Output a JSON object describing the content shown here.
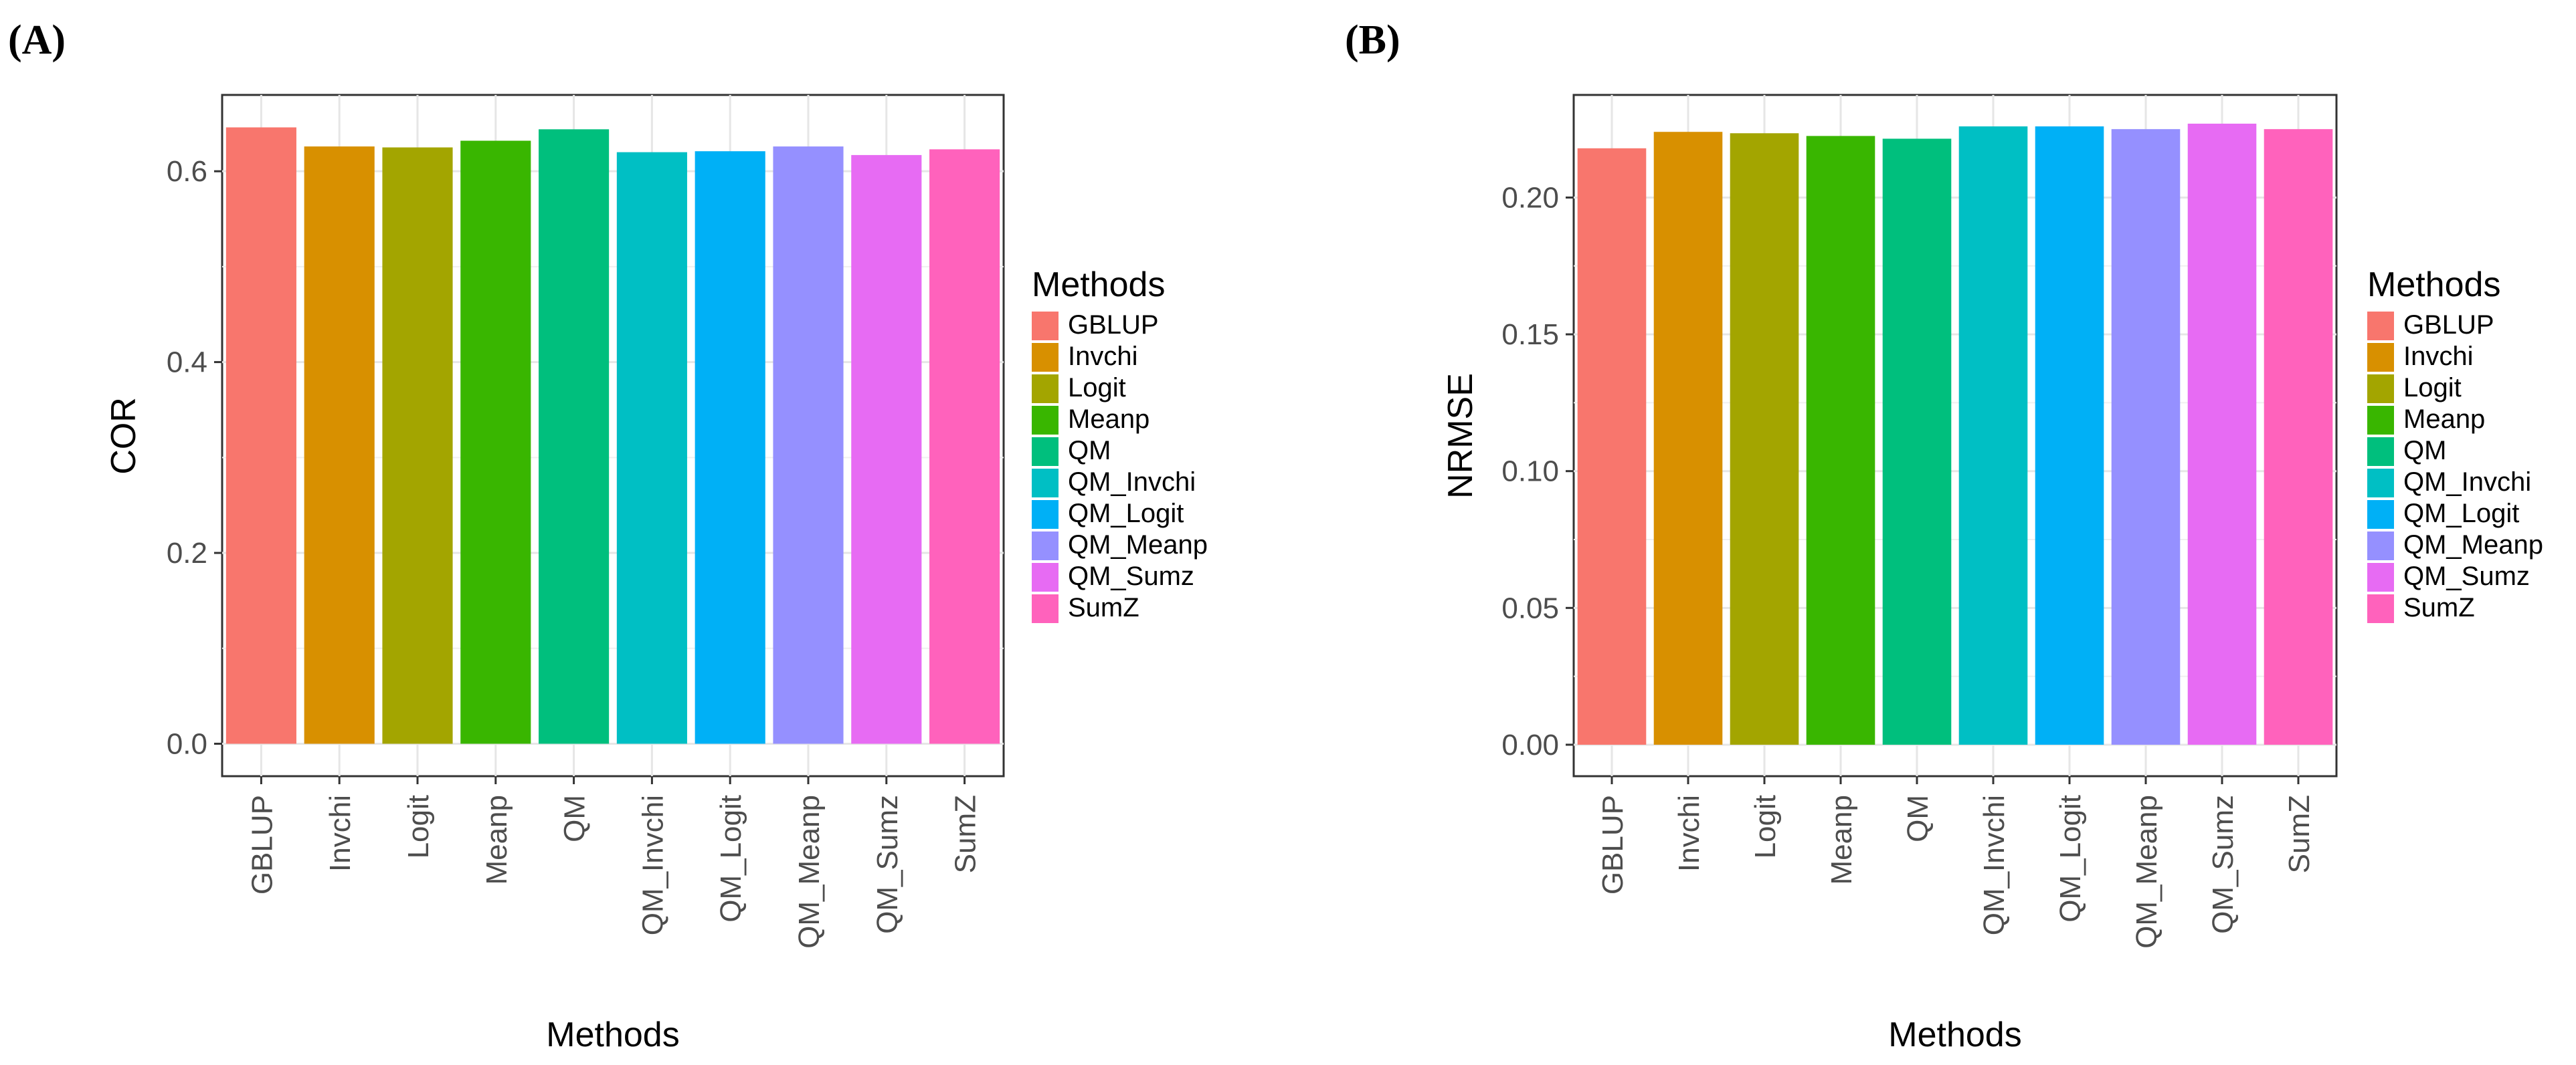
{
  "figure": {
    "panels": [
      "(A)",
      "(B)"
    ]
  },
  "colors": {
    "GBLUP": "#F8766D",
    "Invchi": "#D89000",
    "Logit": "#A3A500",
    "Meanp": "#39B600",
    "QM": "#00BF7D",
    "QM_Invchi": "#00BFC4",
    "QM_Logit": "#00B0F6",
    "QM_Meanp": "#9590FF",
    "QM_Sumz": "#E76BF3",
    "SumZ": "#FF62BC"
  },
  "chart_data": [
    {
      "type": "bar",
      "panel": "(A)",
      "title": "",
      "xlabel": "Methods",
      "ylabel": "COR",
      "categories": [
        "GBLUP",
        "Invchi",
        "Logit",
        "Meanp",
        "QM",
        "QM_Invchi",
        "QM_Logit",
        "QM_Meanp",
        "QM_Sumz",
        "SumZ"
      ],
      "values": [
        0.646,
        0.626,
        0.625,
        0.632,
        0.644,
        0.62,
        0.621,
        0.626,
        0.617,
        0.623
      ],
      "ylim": [
        -0.034,
        0.68
      ],
      "yticks": [
        0.0,
        0.2,
        0.4,
        0.6
      ],
      "ytick_labels": [
        "0.0",
        "0.2",
        "0.4",
        "0.6"
      ],
      "grid": true,
      "legend": {
        "title": "Methods",
        "placement": "right",
        "entries": [
          "GBLUP",
          "Invchi",
          "Logit",
          "Meanp",
          "QM",
          "QM_Invchi",
          "QM_Logit",
          "QM_Meanp",
          "QM_Sumz",
          "SumZ"
        ]
      }
    },
    {
      "type": "bar",
      "panel": "(B)",
      "title": "",
      "xlabel": "Methods",
      "ylabel": "NRMSE",
      "categories": [
        "GBLUP",
        "Invchi",
        "Logit",
        "Meanp",
        "QM",
        "QM_Invchi",
        "QM_Logit",
        "QM_Meanp",
        "QM_Sumz",
        "SumZ"
      ],
      "values": [
        0.218,
        0.224,
        0.2235,
        0.2225,
        0.2215,
        0.226,
        0.226,
        0.225,
        0.227,
        0.225
      ],
      "ylim": [
        -0.0115,
        0.2375
      ],
      "yticks": [
        0.0,
        0.05,
        0.1,
        0.15,
        0.2
      ],
      "ytick_labels": [
        "0.00",
        "0.05",
        "0.10",
        "0.15",
        "0.20"
      ],
      "grid": true,
      "legend": {
        "title": "Methods",
        "placement": "right",
        "entries": [
          "GBLUP",
          "Invchi",
          "Logit",
          "Meanp",
          "QM",
          "QM_Invchi",
          "QM_Logit",
          "QM_Meanp",
          "QM_Sumz",
          "SumZ"
        ]
      }
    }
  ]
}
